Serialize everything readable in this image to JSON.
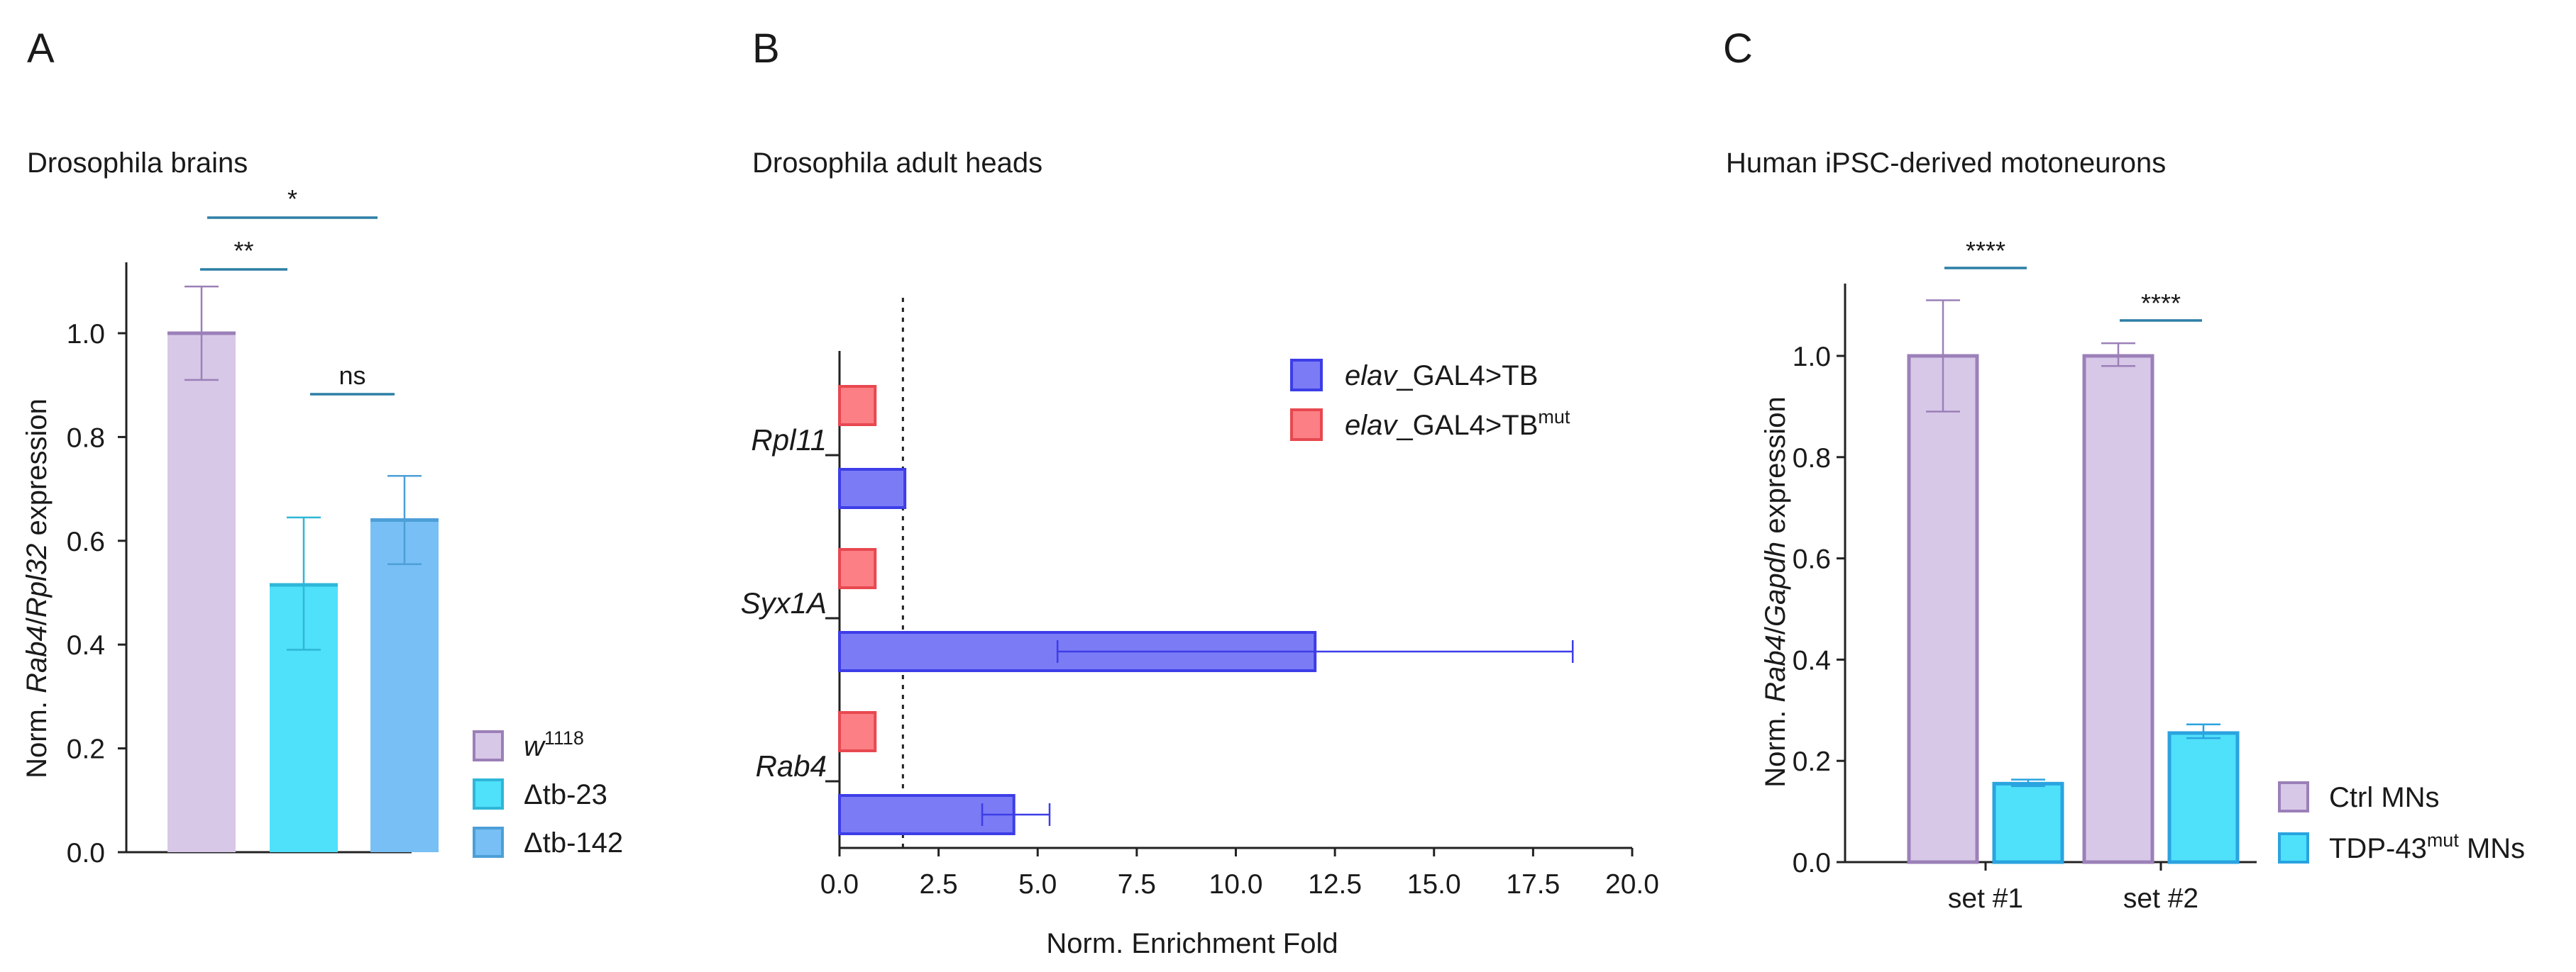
{
  "colors": {
    "w1118": "#d8c8e8",
    "w1118_edge": "#9b80b8",
    "dtb23": "#4fe0fa",
    "dtb23_edge": "#2fb6d8",
    "dtb142": "#77bff4",
    "dtb142_edge": "#4d9fd8",
    "tb": "#7b7bf5",
    "tb_edge": "#3d3de8",
    "tbmut": "#fb7f84",
    "tbmut_edge": "#e84850",
    "ctrl": "#d8c8e8",
    "ctrl_edge": "#9b80b8",
    "tdp": "#4fe0fa",
    "tdp_edge": "#2aa3e0",
    "sigline": "#2c7fa6"
  },
  "chart_data": [
    {
      "panel": "A",
      "type": "bar",
      "title": "Drosophila brains",
      "ylabel_parts": [
        "Norm. ",
        "Rab4",
        "/",
        "Rpl32",
        " expression"
      ],
      "ylim": [
        0,
        1.1
      ],
      "yticks": [
        "0.0",
        "0.2",
        "0.4",
        "0.6",
        "0.8",
        "1.0"
      ],
      "ytick_values": [
        0,
        0.2,
        0.4,
        0.6,
        0.8,
        1.0
      ],
      "series": [
        {
          "name": "w",
          "sup": "1118",
          "value": 1.0,
          "err_low": 0.91,
          "err_high": 1.09
        },
        {
          "name": "Δtb-23",
          "sup": "",
          "value": 0.515,
          "err_low": 0.39,
          "err_high": 0.645
        },
        {
          "name": "Δtb-142",
          "sup": "",
          "value": 0.64,
          "err_low": 0.555,
          "err_high": 0.725
        }
      ],
      "significance": [
        {
          "from": 0,
          "to": 1,
          "label": "**"
        },
        {
          "from": 0,
          "to": 2,
          "label": "*"
        },
        {
          "from": 1,
          "to": 2,
          "label": "ns"
        }
      ]
    },
    {
      "panel": "B",
      "type": "bar",
      "orientation": "horizontal",
      "title": "Drosophila adult heads",
      "xlabel": "Norm. Enrichment Fold",
      "xlim": [
        0,
        20
      ],
      "xticks": [
        "0.0",
        "2.5",
        "5.0",
        "7.5",
        "10.0",
        "12.5",
        "15.0",
        "17.5",
        "20.0"
      ],
      "xtick_values": [
        0,
        2.5,
        5,
        7.5,
        10,
        12.5,
        15,
        17.5,
        20
      ],
      "reference_line": 1.6,
      "categories": [
        "Rpl11",
        "Syx1A",
        "Rab4"
      ],
      "series": [
        {
          "name_italic": "elav",
          "name_rest": "_GAL4>TB",
          "sup": "",
          "values": [
            1.65,
            12.0,
            4.4
          ],
          "err_low": [
            null,
            5.5,
            3.6
          ],
          "err_high": [
            null,
            18.5,
            5.3
          ]
        },
        {
          "name_italic": "elav",
          "name_rest": "_GAL4>TB",
          "sup": "mut",
          "values": [
            0.9,
            0.9,
            0.9
          ],
          "err_low": [
            null,
            null,
            null
          ],
          "err_high": [
            null,
            null,
            null
          ]
        }
      ]
    },
    {
      "panel": "C",
      "type": "bar",
      "title": "Human iPSC-derived motoneurons",
      "ylabel_parts": [
        "Norm. ",
        "Rab4",
        "/",
        "Gapdh",
        " expression"
      ],
      "ylim": [
        0,
        1.15
      ],
      "yticks": [
        "0.0",
        "0.2",
        "0.4",
        "0.6",
        "0.8",
        "1.0"
      ],
      "ytick_values": [
        0,
        0.2,
        0.4,
        0.6,
        0.8,
        1.0
      ],
      "categories": [
        "set #1",
        "set #2"
      ],
      "series": [
        {
          "name": "Ctrl MNs",
          "sup": "",
          "values": [
            1.0,
            1.0
          ],
          "err_low": [
            0.89,
            0.98
          ],
          "err_high": [
            1.11,
            1.025
          ]
        },
        {
          "name": "TDP-43",
          "sup": "mut",
          "name_tail": " MNs",
          "values": [
            0.155,
            0.255
          ],
          "err_low": [
            0.15,
            0.245
          ],
          "err_high": [
            0.163,
            0.272
          ]
        }
      ],
      "significance": [
        {
          "category": 0,
          "label": "****"
        },
        {
          "category": 1,
          "label": "****"
        }
      ]
    }
  ]
}
